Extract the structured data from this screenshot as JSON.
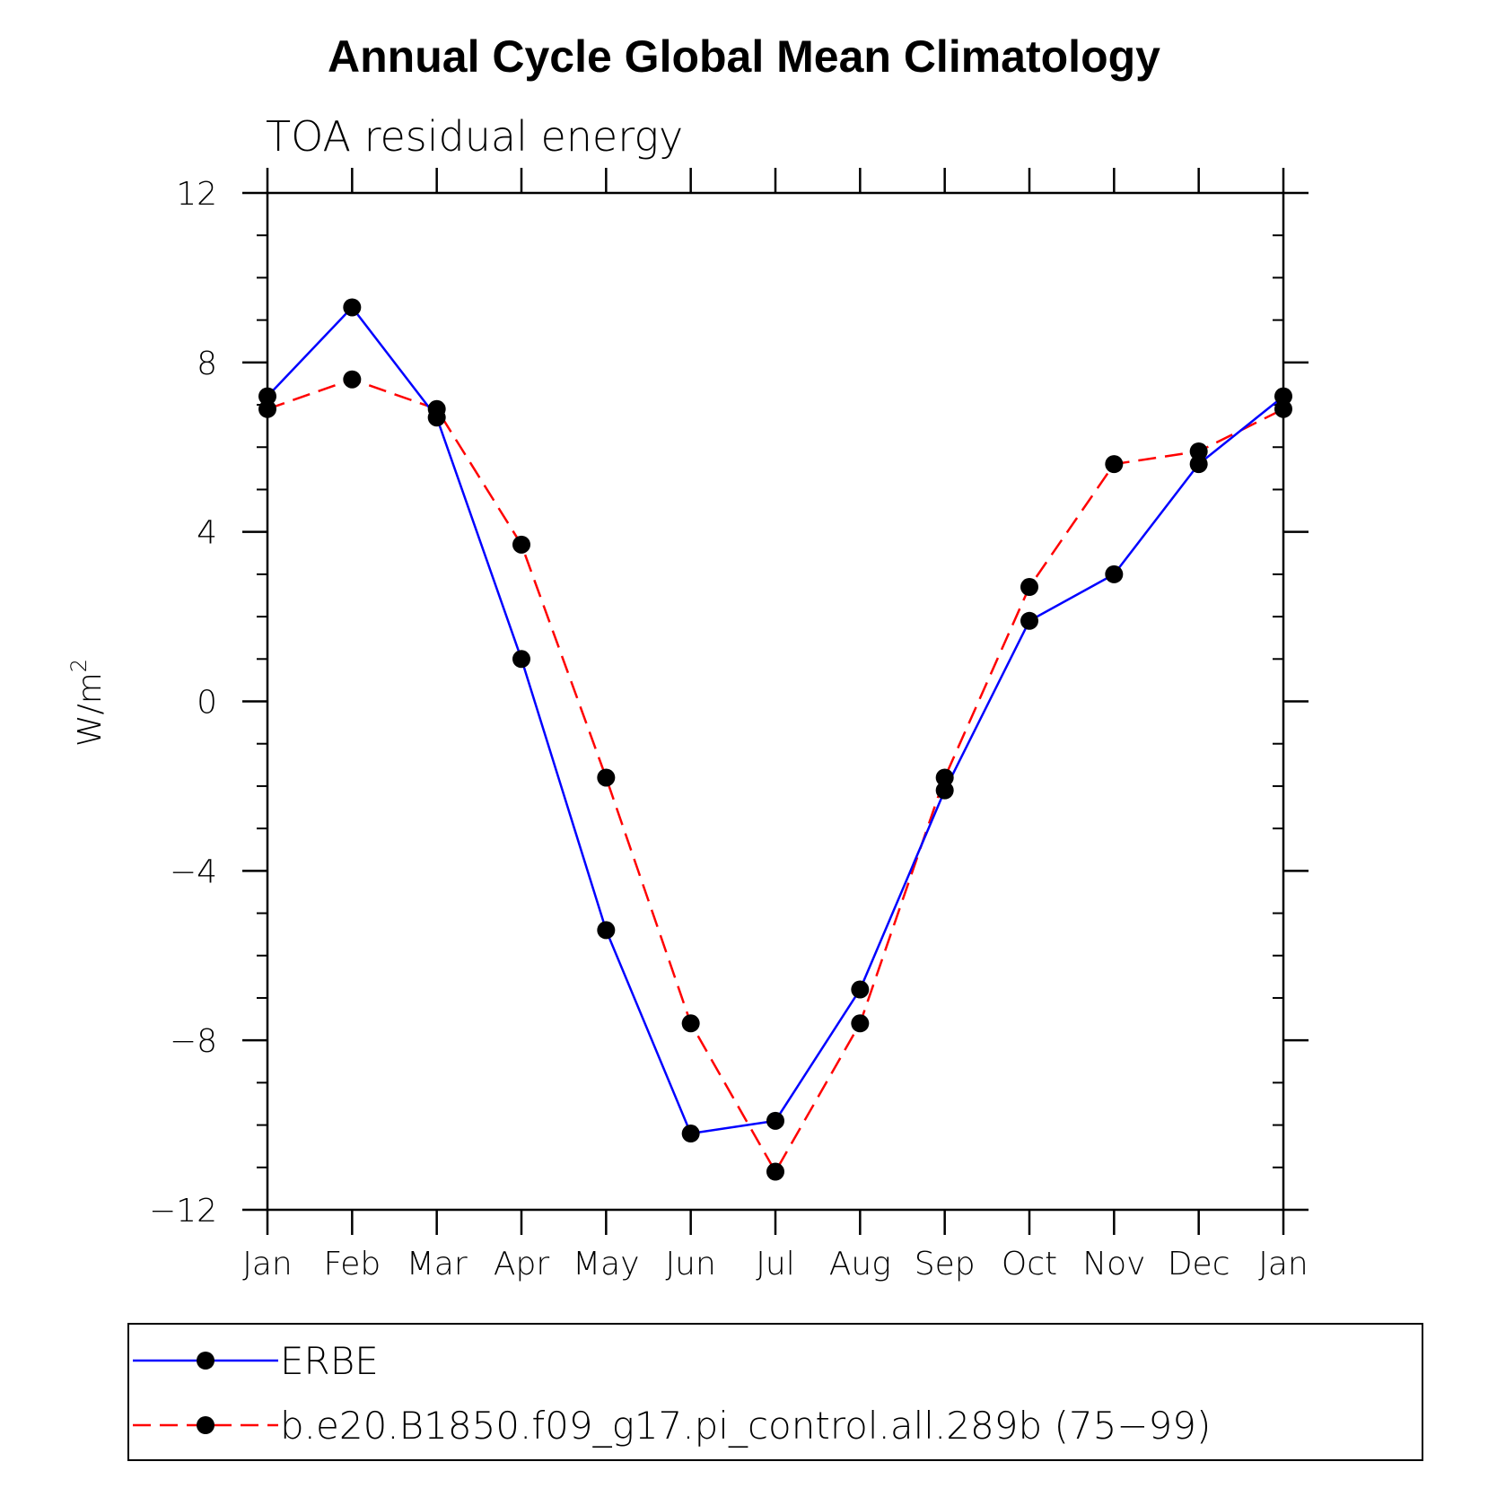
{
  "chart_data": {
    "type": "line",
    "title": "Annual Cycle Global Mean Climatology",
    "subtitle": "TOA residual energy",
    "ylabel": "W/m",
    "ylabel_superscript": "2",
    "xlabel": "",
    "categories": [
      "Jan",
      "Feb",
      "Mar",
      "Apr",
      "May",
      "Jun",
      "Jul",
      "Aug",
      "Sep",
      "Oct",
      "Nov",
      "Dec",
      "Jan"
    ],
    "ylim": [
      -12,
      12
    ],
    "yticks": [
      -12,
      -8,
      -4,
      0,
      4,
      8,
      12
    ],
    "ytick_labels": [
      "−12",
      "−8",
      "−4",
      "0",
      "4",
      "8",
      "12"
    ],
    "series": [
      {
        "name": "ERBE",
        "color": "#0000ff",
        "dash": "solid",
        "values": [
          7.2,
          9.3,
          6.7,
          1.0,
          -5.4,
          -10.2,
          -9.9,
          -6.8,
          -2.1,
          1.9,
          3.0,
          5.6,
          7.2
        ]
      },
      {
        "name": "b.e20.B1850.f09_g17.pi_control.all.289b (75−99)",
        "color": "#ff0000",
        "dash": "dashed",
        "values": [
          6.9,
          7.6,
          6.9,
          3.7,
          -1.8,
          -7.6,
          -11.1,
          -7.6,
          -1.8,
          2.7,
          5.6,
          5.9,
          6.9
        ]
      }
    ],
    "legend_position": "bottom",
    "grid": false
  }
}
